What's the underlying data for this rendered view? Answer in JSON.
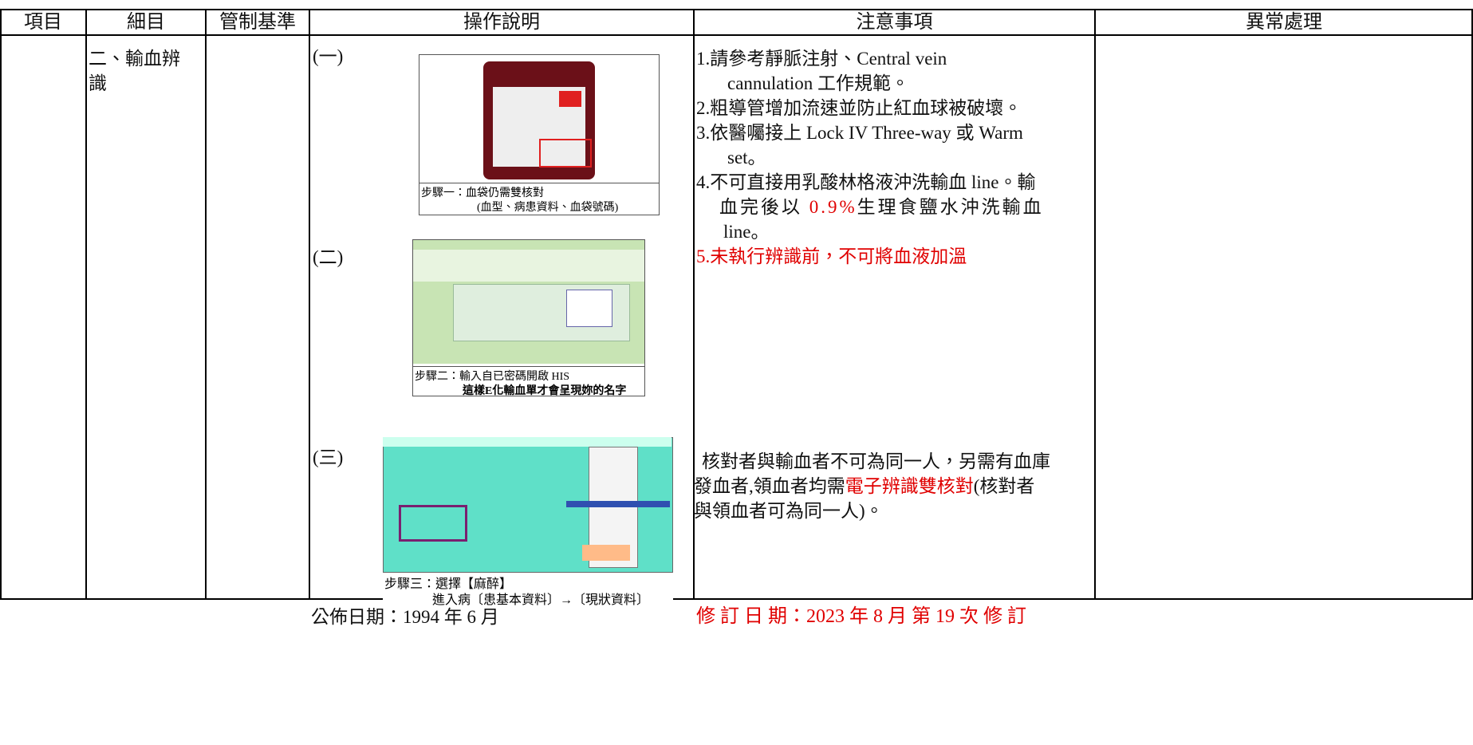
{
  "header": {
    "columns": [
      "項目",
      "細目",
      "管制基準",
      "操作說明",
      "注意事項",
      "異常處理"
    ]
  },
  "subitem": [
    "二、輸血辨",
    "識"
  ],
  "steps": [
    {
      "label": "(一)",
      "caption": [
        "步驟一：血袋仍需雙核對",
        "(血型、病患資料、血袋號碼)"
      ]
    },
    {
      "label": "(二)",
      "caption": [
        "步驟二：輸入自已密碼開啟 HIS",
        "這樣E化輸血單才會呈現妳的名字"
      ]
    },
    {
      "label": "(三)",
      "caption": [
        "步驟三：選擇【麻醉】",
        "進入病〔患基本資料〕→〔現狀資料〕"
      ]
    }
  ],
  "notes": [
    [
      "1.請參考靜脈注射、Central vein"
    ],
    [
      "cannulation 工作規範。"
    ],
    [
      "2.粗導管增加流速並防止紅血球被破壞。"
    ],
    [
      "3.依醫囑接上 Lock IV Three-way 或 Warm"
    ],
    [
      "set。"
    ],
    [
      "4.不可直接用乳酸林格液沖洗輸血 line。輸"
    ],
    [
      "血完後以 ",
      "0.9%",
      "生理食鹽水沖洗輸血"
    ],
    [
      "line。"
    ],
    [
      "5.未執行辨識前，不可將血液加溫"
    ]
  ],
  "notes2": [
    [
      "核對者與輸血者不可為同一人，另需有血庫"
    ],
    [
      "發血者,領血者均需",
      "電子辨識雙核對",
      "(核對者"
    ],
    [
      "與領血者可為同一人)。"
    ]
  ],
  "footer": {
    "published": "公佈日期：1994 年 6 月",
    "revised": "修 訂 日 期：2023 年 8 月 第 19 次 修 訂"
  }
}
